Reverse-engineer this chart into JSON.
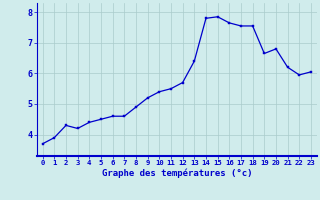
{
  "hours": [
    0,
    1,
    2,
    3,
    4,
    5,
    6,
    7,
    8,
    9,
    10,
    11,
    12,
    13,
    14,
    15,
    16,
    17,
    18,
    19,
    20,
    21,
    22,
    23
  ],
  "temps": [
    3.7,
    3.9,
    4.3,
    4.2,
    4.4,
    4.5,
    4.6,
    4.6,
    4.9,
    5.2,
    5.4,
    5.5,
    5.7,
    6.4,
    7.8,
    7.85,
    7.65,
    7.55,
    7.55,
    6.65,
    6.8,
    6.2,
    5.95,
    6.05
  ],
  "line_color": "#0000cc",
  "marker_color": "#0000cc",
  "bg_color": "#d0ecec",
  "grid_color": "#aacccc",
  "axis_color": "#0000cc",
  "xlabel": "Graphe des températures (°c)",
  "xlim": [
    -0.5,
    23.5
  ],
  "ylim": [
    3.3,
    8.3
  ],
  "yticks": [
    4,
    5,
    6,
    7,
    8
  ],
  "xticks": [
    0,
    1,
    2,
    3,
    4,
    5,
    6,
    7,
    8,
    9,
    10,
    11,
    12,
    13,
    14,
    15,
    16,
    17,
    18,
    19,
    20,
    21,
    22,
    23
  ]
}
